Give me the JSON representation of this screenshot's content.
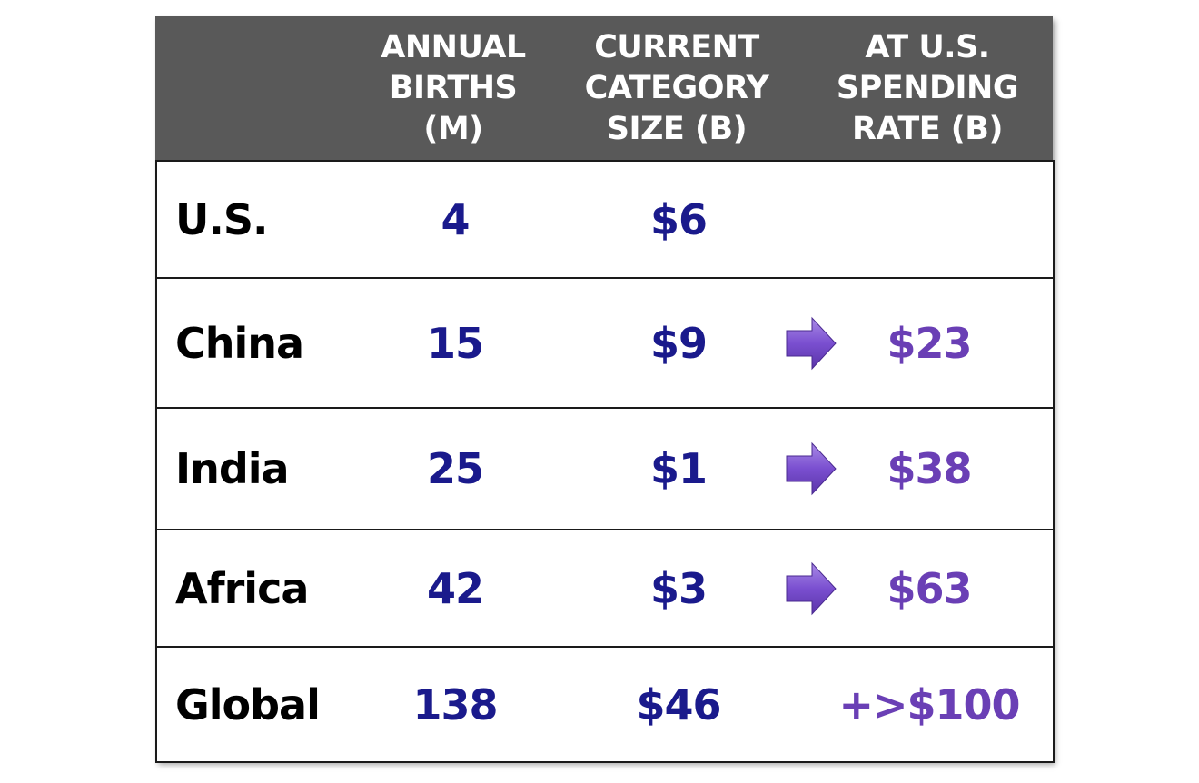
{
  "header": {
    "col_births": "ANNUAL\nBIRTHS\n(M)",
    "col_size": "CURRENT\nCATEGORY\nSIZE (B)",
    "col_rate": "AT U.S.\nSPENDING\nRATE (B)"
  },
  "rows": [
    {
      "name": "U.S.",
      "births": "4",
      "size": "$6",
      "rate": "",
      "arrow": false
    },
    {
      "name": "China",
      "births": "15",
      "size": "$9",
      "rate": "$23",
      "arrow": true
    },
    {
      "name": "India",
      "births": "25",
      "size": "$1",
      "rate": "$38",
      "arrow": true
    },
    {
      "name": "Africa",
      "births": "42",
      "size": "$3",
      "rate": "$63",
      "arrow": true
    },
    {
      "name": "Global",
      "births": "138",
      "size": "$46",
      "rate": "+>$100",
      "arrow": false
    }
  ],
  "colors": {
    "header_bg": "#595959",
    "value_blue": "#1a1a8c",
    "rate_purple": "#6a3fb5",
    "arrow_purple": "#7a4fd0"
  },
  "icons": {
    "arrow": "right-arrow-icon"
  }
}
